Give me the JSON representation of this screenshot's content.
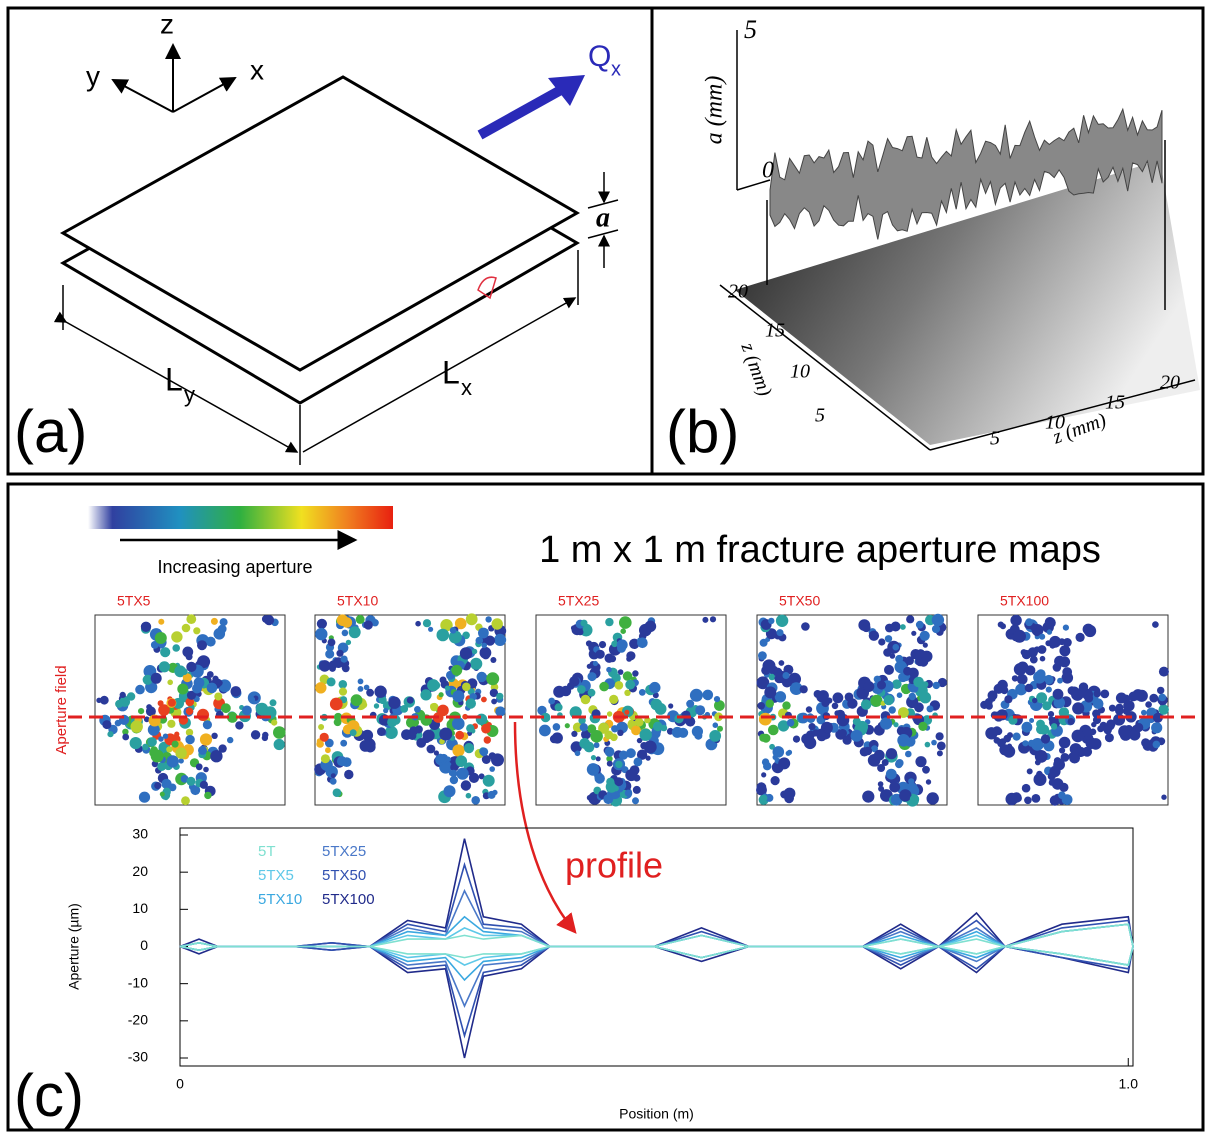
{
  "panel_a": {
    "label": "(a)",
    "axes": [
      "z",
      "y",
      "x"
    ],
    "flow": "Q",
    "flow_subscript": "x",
    "aperture": "a",
    "length_y": "L",
    "length_y_subscript": "y",
    "length_x": "L",
    "length_x_subscript": "x"
  },
  "panel_b": {
    "label": "(b)",
    "z_axis_label": "a (mm)",
    "z_ticks": [
      "5",
      "0"
    ],
    "y_axis_label": "z (mm)",
    "y_ticks": [
      "20",
      "15",
      "10",
      "5"
    ],
    "x_axis_label": "z (mm)",
    "x_ticks": [
      "5",
      "10",
      "15",
      "20"
    ]
  },
  "panel_c": {
    "label": "(c)",
    "title": "1 m x 1 m fracture aperture maps",
    "colorbar_label": "Increasing aperture",
    "maps": [
      "5TX5",
      "5TX10",
      "5TX25",
      "5TX50",
      "5TX100"
    ],
    "field_label": "Aperture field",
    "profile_label": "profile"
  },
  "chart_data": {
    "type": "line",
    "xlabel": "Position (m)",
    "ylabel": "Aperture (µm)",
    "x": [
      0,
      0.02,
      0.04,
      0.12,
      0.16,
      0.2,
      0.24,
      0.28,
      0.3,
      0.32,
      0.36,
      0.39,
      0.5,
      0.55,
      0.6,
      0.72,
      0.76,
      0.8,
      0.84,
      0.87,
      0.93,
      1.0,
      1.005,
      1.005,
      1.0,
      0.93,
      0.87,
      0.84,
      0.8,
      0.76,
      0.72,
      0.6,
      0.55,
      0.5,
      0.39,
      0.36,
      0.32,
      0.3,
      0.28,
      0.24,
      0.2,
      0.16,
      0.12,
      0.04,
      0.02,
      0
    ],
    "xlim": [
      0,
      1.005
    ],
    "xticks": [
      0,
      {
        "value": 1,
        "label": "1.0"
      }
    ],
    "ylim": [
      -30,
      30
    ],
    "yticks": [
      -30,
      -20,
      -10,
      0,
      10,
      20,
      30
    ],
    "series": [
      {
        "name": "5T",
        "color": "#7fe0d0",
        "values": [
          0,
          1,
          0,
          0,
          0,
          0,
          2,
          2,
          3,
          2,
          3,
          0,
          0,
          3,
          0,
          0,
          2,
          0,
          2,
          0,
          4,
          6,
          0,
          0,
          -5,
          -2,
          0,
          -2,
          0,
          -2,
          0,
          0,
          -3,
          0,
          0,
          -2,
          -2,
          -3,
          -2,
          -2,
          0,
          0,
          0,
          0,
          -1,
          0
        ]
      },
      {
        "name": "5TX5",
        "color": "#5ec8e8",
        "values": [
          0,
          1,
          0,
          0,
          0,
          0,
          3,
          2,
          5,
          3,
          3,
          0,
          0,
          3,
          0,
          0,
          2,
          0,
          3,
          0,
          4,
          6,
          0,
          0,
          -5,
          -2,
          0,
          -2,
          0,
          -2,
          0,
          0,
          -3,
          0,
          0,
          -2,
          -3,
          -5,
          -2,
          -3,
          0,
          0,
          0,
          0,
          -1,
          0
        ]
      },
      {
        "name": "5TX10",
        "color": "#3aa8e0",
        "values": [
          0,
          1,
          0,
          0,
          0,
          0,
          4,
          3,
          8,
          4,
          3,
          0,
          0,
          3,
          0,
          0,
          3,
          0,
          4,
          0,
          4,
          6,
          0,
          0,
          -5,
          -2,
          0,
          -3,
          0,
          -3,
          0,
          0,
          -3,
          0,
          0,
          -3,
          -4,
          -9,
          -3,
          -4,
          0,
          0,
          0,
          0,
          -1,
          0
        ]
      },
      {
        "name": "5TX25",
        "color": "#4a78c8",
        "values": [
          0,
          1,
          0,
          0,
          0,
          0,
          5,
          3,
          15,
          5,
          4,
          0,
          0,
          3,
          0,
          0,
          4,
          0,
          5,
          0,
          4,
          6,
          0,
          0,
          -5,
          -2,
          0,
          -4,
          0,
          -4,
          0,
          0,
          -3,
          0,
          0,
          -4,
          -5,
          -16,
          -4,
          -5,
          0,
          0,
          0,
          0,
          -1,
          0
        ]
      },
      {
        "name": "5TX50",
        "color": "#3050b0",
        "values": [
          0,
          1,
          0,
          0,
          1,
          0,
          6,
          4,
          22,
          6,
          5,
          0,
          0,
          4,
          0,
          0,
          5,
          0,
          7,
          0,
          5,
          7,
          0,
          0,
          -6,
          -3,
          0,
          -6,
          0,
          -5,
          0,
          0,
          -3,
          0,
          0,
          -5,
          -7,
          -24,
          -5,
          -6,
          0,
          -1,
          0,
          0,
          -1,
          0
        ]
      },
      {
        "name": "5TX100",
        "color": "#202a8a",
        "values": [
          0,
          2,
          0,
          0,
          1,
          0,
          7,
          5,
          29,
          8,
          6,
          0,
          0,
          5,
          0,
          0,
          6,
          0,
          9,
          0,
          6,
          8,
          0,
          0,
          -7,
          -3,
          0,
          -7,
          0,
          -6,
          0,
          0,
          -4,
          0,
          0,
          -6,
          -8,
          -30,
          -6,
          -7,
          0,
          -1,
          0,
          0,
          -2,
          0
        ]
      }
    ]
  }
}
